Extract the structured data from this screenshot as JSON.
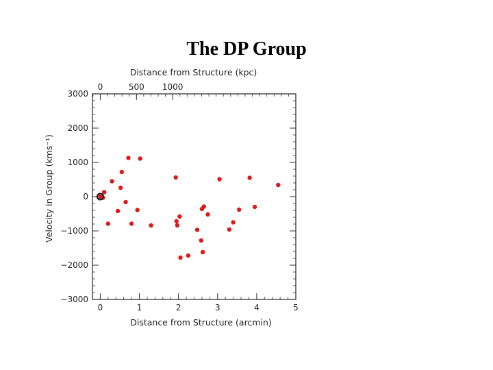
{
  "slide": {
    "title": "The DP Group"
  },
  "colors": {
    "points": "#dd1a1a",
    "axes": "#333333",
    "marker": "#111111"
  },
  "chart_data": {
    "type": "scatter",
    "xlabel": "Distance from Structure (arcmin)",
    "ylabel": "Velocity in Group (kms⁻¹)",
    "top_xlabel": "Distance from Structure (kpc)",
    "xlim": [
      -0.2,
      5
    ],
    "ylim": [
      -3000,
      3000
    ],
    "top_xlim_kpc": [
      -108,
      2700
    ],
    "x_ticks": [
      "0",
      "1",
      "2",
      "3",
      "4",
      "5"
    ],
    "y_ticks": [
      "3000",
      "2000",
      "1000",
      "0",
      "−1000",
      "−2000",
      "−3000"
    ],
    "top_ticks": [
      "0",
      "500",
      "1000"
    ],
    "origin_marker": {
      "x": 0.0,
      "y": 0
    },
    "series": [
      {
        "points": [
          [
            0.0,
            0
          ],
          [
            0.07,
            -30
          ],
          [
            0.1,
            130
          ],
          [
            0.2,
            -790
          ],
          [
            0.3,
            450
          ],
          [
            0.45,
            -420
          ],
          [
            0.52,
            260
          ],
          [
            0.55,
            720
          ],
          [
            0.65,
            -160
          ],
          [
            0.72,
            1130
          ],
          [
            0.8,
            -790
          ],
          [
            0.95,
            -390
          ],
          [
            1.02,
            1110
          ],
          [
            1.3,
            -840
          ],
          [
            1.93,
            560
          ],
          [
            1.95,
            -720
          ],
          [
            1.97,
            -840
          ],
          [
            2.03,
            -580
          ],
          [
            2.05,
            -1780
          ],
          [
            2.25,
            -1720
          ],
          [
            2.48,
            -970
          ],
          [
            2.58,
            -1280
          ],
          [
            2.6,
            -360
          ],
          [
            2.62,
            -1620
          ],
          [
            2.65,
            -290
          ],
          [
            2.75,
            -520
          ],
          [
            3.05,
            510
          ],
          [
            3.3,
            -960
          ],
          [
            3.4,
            -750
          ],
          [
            3.55,
            -380
          ],
          [
            3.82,
            550
          ],
          [
            3.95,
            -300
          ],
          [
            4.55,
            340
          ]
        ]
      }
    ]
  }
}
